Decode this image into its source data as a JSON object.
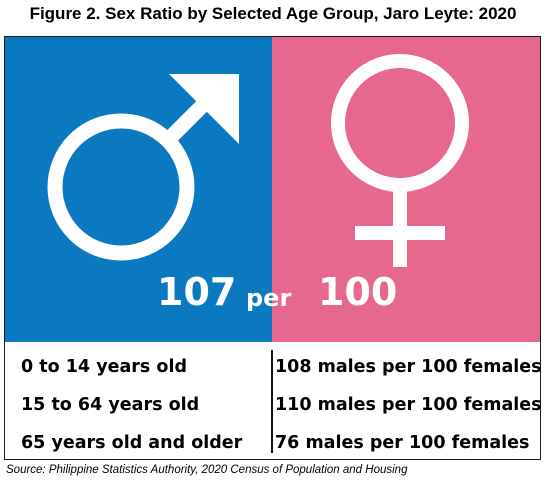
{
  "title": "Figure 2. Sex Ratio by Selected Age Group, Jaro Leyte: 2020",
  "colors": {
    "male_panel": "#0b79bf",
    "female_panel": "#e6688c",
    "symbol": "#ffffff"
  },
  "icons": {
    "male": "male-symbol-icon",
    "female": "female-symbol-icon"
  },
  "headline": {
    "males": "107",
    "connector": "per",
    "females": "100"
  },
  "chart_data": {
    "type": "table",
    "title": "Figure 2. Sex Ratio by Selected Age Group, Jaro Leyte: 2020",
    "overall": {
      "males": 107,
      "per_females": 100
    },
    "rows": [
      {
        "age_group": "0 to 14 years old",
        "sex_ratio": 108,
        "label": "108 males per 100 females"
      },
      {
        "age_group": "15 to 64 years old",
        "sex_ratio": 110,
        "label": "110 males per 100 females"
      },
      {
        "age_group": "65 years old and older",
        "sex_ratio": 76,
        "label": "76 males per 100 females"
      }
    ]
  },
  "source": "Source: Philippine Statistics Authority, 2020 Census of Population and Housing"
}
